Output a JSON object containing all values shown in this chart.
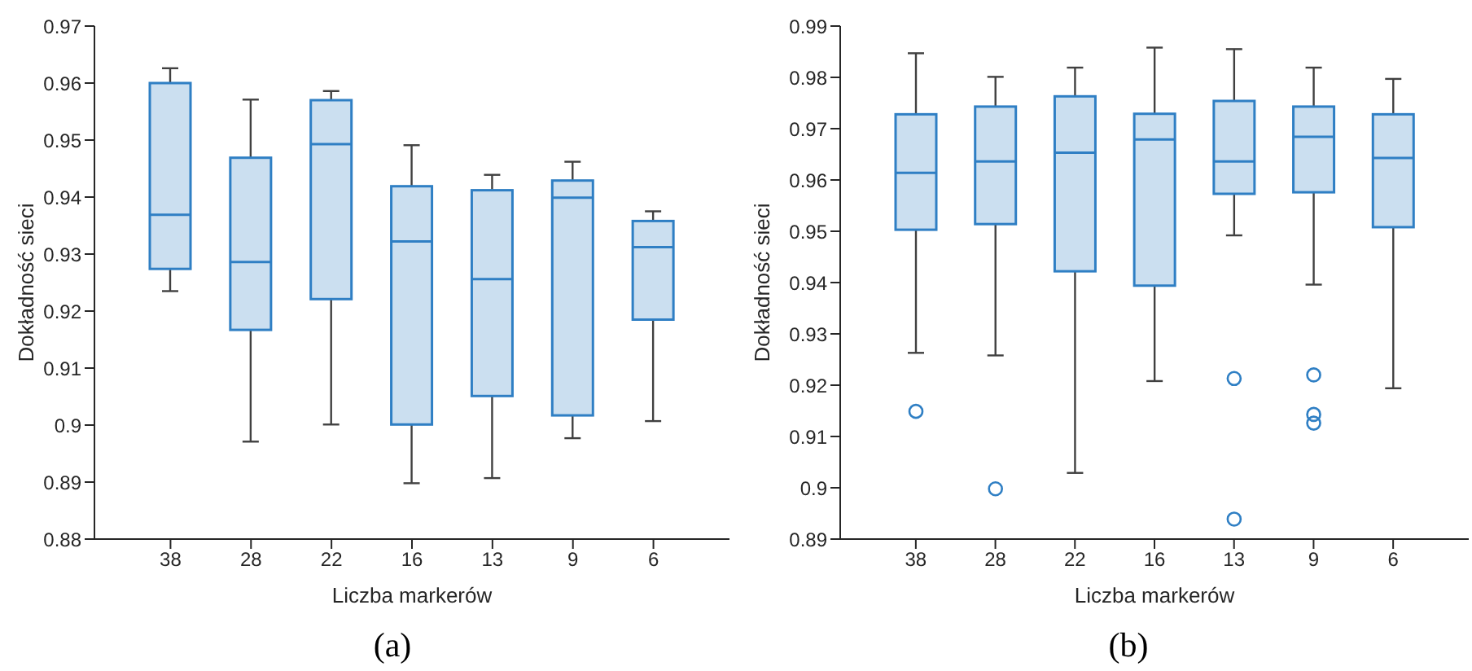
{
  "chart_data": [
    {
      "type": "box",
      "categories": [
        "38",
        "28",
        "22",
        "16",
        "13",
        "9",
        "6"
      ],
      "xlabel": "Liczba markerów",
      "ylabel": "Dokładność sieci",
      "ylim": [
        0.88,
        0.97
      ],
      "yticks": [
        0.88,
        0.89,
        0.9,
        0.91,
        0.92,
        0.93,
        0.94,
        0.95,
        0.96,
        0.97
      ],
      "annotations": [
        "(a)"
      ],
      "series": [
        {
          "color": "#2f7fc4",
          "boxes": [
            {
              "low": 0.9235,
              "q1": 0.9274,
              "median": 0.9369,
              "q3": 0.96,
              "high": 0.9626
            },
            {
              "low": 0.8971,
              "q1": 0.9167,
              "median": 0.9286,
              "q3": 0.9469,
              "high": 0.9571
            },
            {
              "low": 0.9001,
              "q1": 0.9221,
              "median": 0.9493,
              "q3": 0.957,
              "high": 0.9586
            },
            {
              "low": 0.8898,
              "q1": 0.9001,
              "median": 0.9322,
              "q3": 0.9419,
              "high": 0.9491
            },
            {
              "low": 0.8907,
              "q1": 0.9051,
              "median": 0.9256,
              "q3": 0.9412,
              "high": 0.9439
            },
            {
              "low": 0.8977,
              "q1": 0.9017,
              "median": 0.9399,
              "q3": 0.9429,
              "high": 0.9462
            },
            {
              "low": 0.9007,
              "q1": 0.9185,
              "median": 0.9312,
              "q3": 0.9358,
              "high": 0.9375
            }
          ]
        }
      ]
    },
    {
      "type": "box",
      "categories": [
        "38",
        "28",
        "22",
        "16",
        "13",
        "9",
        "6"
      ],
      "xlabel": "Liczba markerów",
      "ylabel": "Dokładność sieci",
      "ylim": [
        0.89,
        0.99
      ],
      "yticks": [
        0.89,
        0.9,
        0.91,
        0.92,
        0.93,
        0.94,
        0.95,
        0.96,
        0.97,
        0.98,
        0.99
      ],
      "annotations": [
        "(b)"
      ],
      "series": [
        {
          "color": "#2f7fc4",
          "boxes": [
            {
              "low": 0.9263,
              "q1": 0.9503,
              "median": 0.9614,
              "q3": 0.9728,
              "high": 0.9847,
              "outliers": [
                0.9149
              ]
            },
            {
              "low": 0.9258,
              "q1": 0.9514,
              "median": 0.9636,
              "q3": 0.9743,
              "high": 0.9801,
              "outliers": [
                0.8998
              ]
            },
            {
              "low": 0.9029,
              "q1": 0.9422,
              "median": 0.9653,
              "q3": 0.9763,
              "high": 0.9819
            },
            {
              "low": 0.9208,
              "q1": 0.9394,
              "median": 0.9679,
              "q3": 0.9729,
              "high": 0.9858
            },
            {
              "low": 0.9492,
              "q1": 0.9573,
              "median": 0.9636,
              "q3": 0.9754,
              "high": 0.9855,
              "outliers": [
                0.9213,
                0.8939
              ]
            },
            {
              "low": 0.9396,
              "q1": 0.9576,
              "median": 0.9684,
              "q3": 0.9743,
              "high": 0.9819,
              "outliers": [
                0.922,
                0.9143,
                0.9126
              ]
            },
            {
              "low": 0.9194,
              "q1": 0.9508,
              "median": 0.9643,
              "q3": 0.9728,
              "high": 0.9797
            }
          ]
        }
      ]
    }
  ]
}
